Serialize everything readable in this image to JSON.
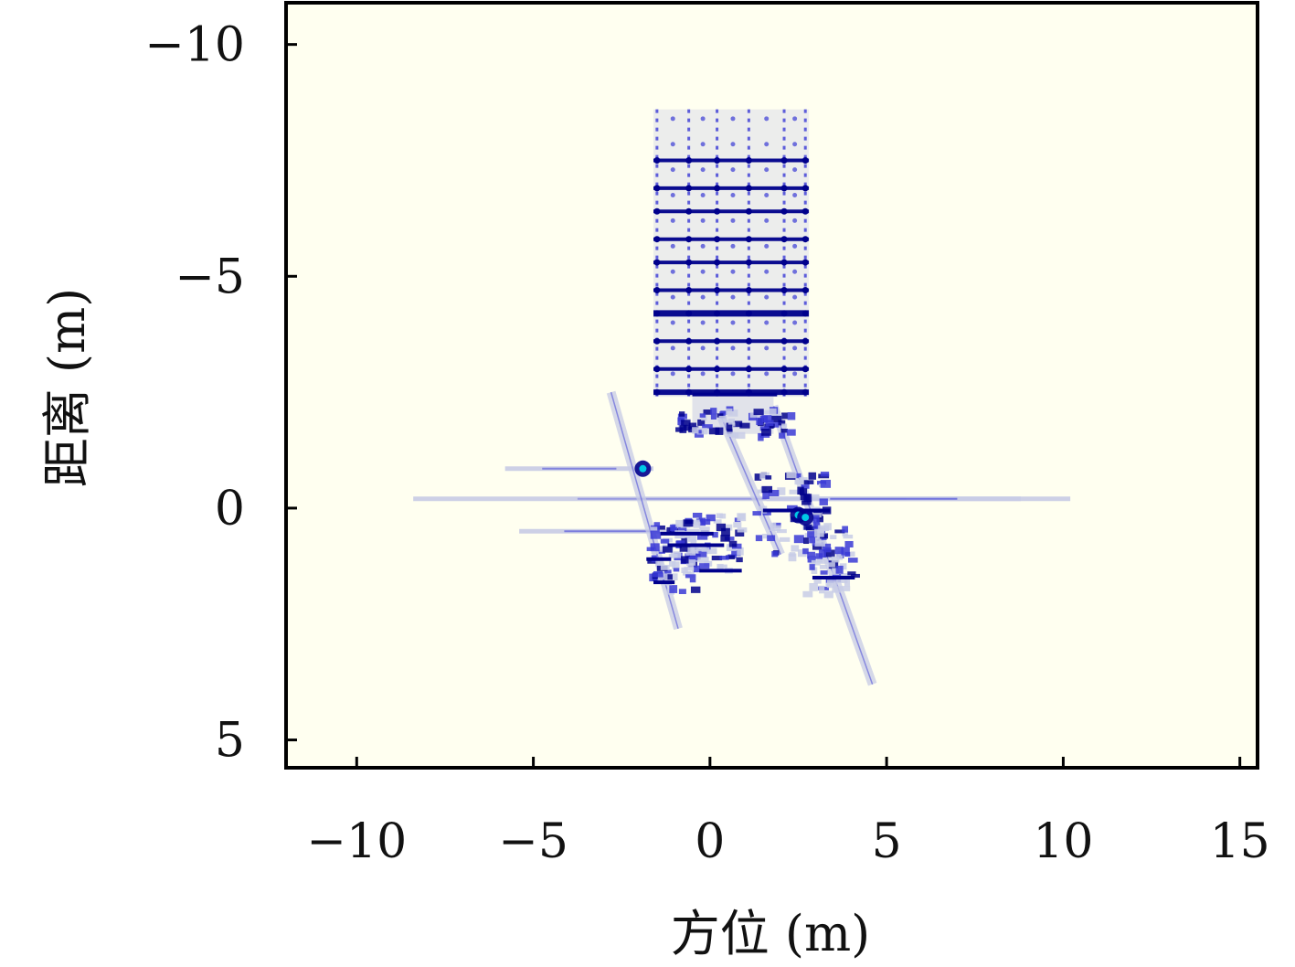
{
  "chart_data": {
    "type": "heatmap",
    "xlabel": "方位 (m)",
    "ylabel": "距离 (m)",
    "xlim": [
      -12,
      15.5
    ],
    "ylim": [
      -10.9,
      5.6
    ],
    "y_axis_inverted": true,
    "xticks": [
      -10,
      -5,
      0,
      5,
      10,
      15
    ],
    "xtick_labels": [
      "−10",
      "−5",
      "0",
      "5",
      "10",
      "15"
    ],
    "yticks": [
      -10,
      -5,
      0,
      5
    ],
    "ytick_labels": [
      "−10",
      "−5",
      "0",
      "5"
    ],
    "grid": false,
    "colors": {
      "background": "#fffff0",
      "low": "#c8cce6",
      "mid": "#3a3ad6",
      "high": "#00008c",
      "peak": "#00c8e6",
      "frame": "#000000"
    },
    "features": {
      "grid_target": {
        "x_range": [
          -1.6,
          2.8
        ],
        "y_range": [
          -8.6,
          -2.4
        ],
        "column_x": [
          -1.5,
          -0.6,
          0.2,
          1.1,
          2.1,
          2.7
        ],
        "row_y": [
          -7.5,
          -6.9,
          -6.4,
          -5.8,
          -5.3,
          -4.7,
          -4.2,
          -3.6,
          -3.0,
          -2.5
        ]
      },
      "streaks": [
        {
          "x": [
            -8.4,
            10.2
          ],
          "y": -0.2,
          "strength": 0.35
        },
        {
          "x": [
            -5.8,
            -1.6
          ],
          "y": -0.85,
          "strength": 0.5
        },
        {
          "x": [
            -5.4,
            -0.3
          ],
          "y": 0.5,
          "strength": 0.55
        },
        {
          "x": [
            1.6,
            8.8
          ],
          "y": -0.2,
          "strength": 0.6
        }
      ],
      "diagonals": [
        {
          "from": [
            -2.8,
            -2.5
          ],
          "to": [
            -0.9,
            2.6
          ]
        },
        {
          "from": [
            1.8,
            -2.2
          ],
          "to": [
            4.6,
            3.8
          ]
        },
        {
          "from": [
            0.3,
            -2.0
          ],
          "to": [
            2.0,
            1.0
          ]
        }
      ],
      "peaks": [
        {
          "x": -1.9,
          "y": -0.85
        },
        {
          "x": 2.5,
          "y": 0.15
        },
        {
          "x": 2.7,
          "y": 0.2
        }
      ],
      "clusters": [
        {
          "x": [
            -1.8,
            -0.5
          ],
          "y": [
            0.3,
            1.8
          ]
        },
        {
          "x": [
            -1.0,
            0.8
          ],
          "y": [
            0.1,
            1.3
          ]
        },
        {
          "x": [
            1.2,
            3.2
          ],
          "y": [
            -0.8,
            1.0
          ]
        },
        {
          "x": [
            2.6,
            4.0
          ],
          "y": [
            0.3,
            1.8
          ]
        },
        {
          "x": [
            -1.0,
            2.2
          ],
          "y": [
            -2.2,
            -1.6
          ]
        }
      ]
    }
  }
}
